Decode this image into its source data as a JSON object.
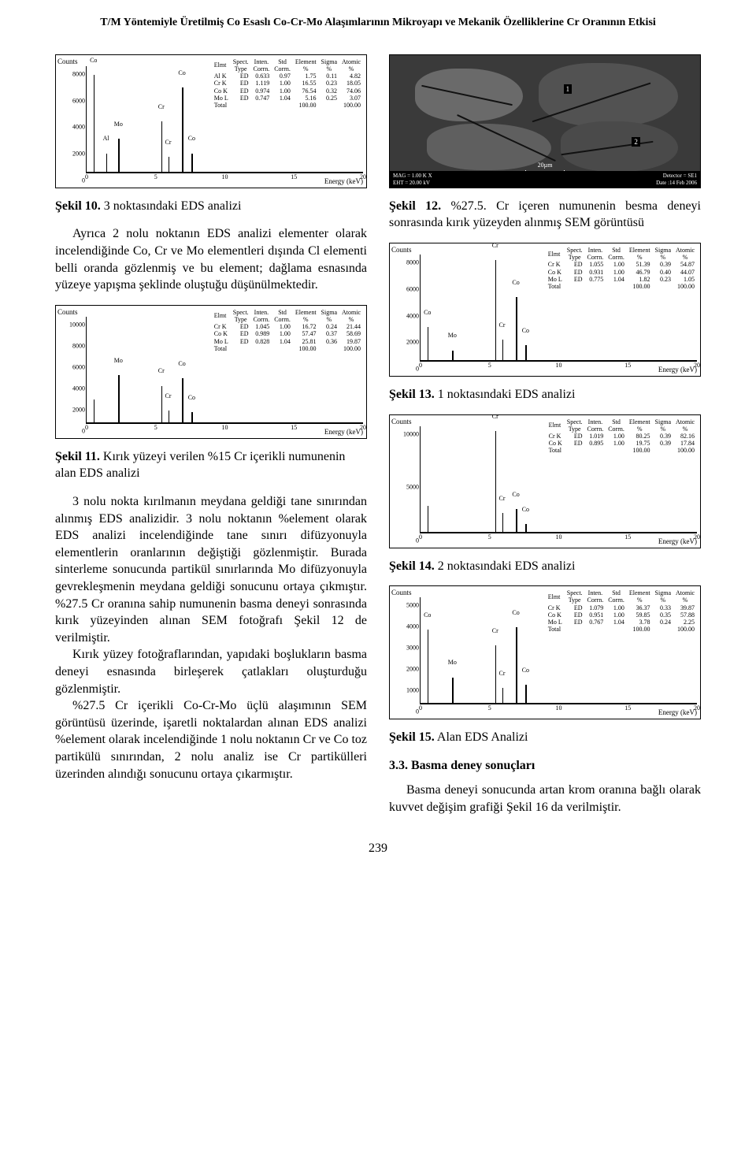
{
  "header": {
    "title": "T/M Yöntemiyle Üretilmiş Co Esaslı Co-Cr-Mo Alaşımlarının Mikroyapı ve Mekanik Özelliklerine Cr Oranının Etkisi"
  },
  "footer": {
    "page": "239"
  },
  "charts": {
    "common": {
      "axis_y_label": "Counts",
      "axis_x_label": "Energy (keV)",
      "xlim": [
        0,
        20
      ],
      "xticks": [
        0,
        5,
        10,
        15,
        20
      ],
      "line_color": "#000000",
      "bg_color": "#ffffff",
      "font_size_pt": 8
    },
    "sekil10": {
      "ylim": [
        0,
        8000
      ],
      "yticks": [
        0,
        2000,
        4000,
        6000,
        8000
      ],
      "peaks": [
        {
          "x": 0.5,
          "h": 0.92,
          "label": "Co"
        },
        {
          "x": 1.4,
          "h": 0.18,
          "label": "Al"
        },
        {
          "x": 2.3,
          "h": 0.32,
          "label": "Mo"
        },
        {
          "x": 5.4,
          "h": 0.48,
          "label": "Cr"
        },
        {
          "x": 5.9,
          "h": 0.15,
          "label": "Cr"
        },
        {
          "x": 6.9,
          "h": 0.8,
          "label": "Co"
        },
        {
          "x": 7.6,
          "h": 0.18,
          "label": "Co"
        }
      ],
      "table": {
        "head": [
          "Elmt",
          "Spect.\nType",
          "Inten.\nCorrn.",
          "Std\nCorrn.",
          "Element\n%",
          "Sigma\n%",
          "Atomic\n%"
        ],
        "rows": [
          [
            "Al K",
            "ED",
            "0.633",
            "0.97",
            "1.75",
            "0.11",
            "4.82"
          ],
          [
            "Cr K",
            "ED",
            "1.119",
            "1.00",
            "16.55",
            "0.23",
            "18.05"
          ],
          [
            "Co K",
            "ED",
            "0.974",
            "1.00",
            "76.54",
            "0.32",
            "74.06"
          ],
          [
            "Mo L",
            "ED",
            "0.747",
            "1.04",
            "5.16",
            "0.25",
            "3.07"
          ],
          [
            "Total",
            "",
            "",
            "",
            "100.00",
            "",
            "100.00"
          ]
        ]
      }
    },
    "sekil11": {
      "ylim": [
        0,
        10000
      ],
      "yticks": [
        0,
        2000,
        4000,
        6000,
        8000,
        10000
      ],
      "peaks": [
        {
          "x": 0.5,
          "h": 0.22,
          "label": ""
        },
        {
          "x": 2.3,
          "h": 0.45,
          "label": "Mo"
        },
        {
          "x": 5.4,
          "h": 0.35,
          "label": "Cr"
        },
        {
          "x": 5.9,
          "h": 0.12,
          "label": "Cr"
        },
        {
          "x": 6.9,
          "h": 0.42,
          "label": "Co"
        },
        {
          "x": 7.6,
          "h": 0.1,
          "label": "Co"
        }
      ],
      "table": {
        "head": [
          "Elmt",
          "Spect.\nType",
          "Inten.\nCorrn.",
          "Std\nCorrn.",
          "Element\n%",
          "Sigma\n%",
          "Atomic\n%"
        ],
        "rows": [
          [
            "Cr K",
            "ED",
            "1.045",
            "1.00",
            "16.72",
            "0.24",
            "21.44"
          ],
          [
            "Co K",
            "ED",
            "0.989",
            "1.00",
            "57.47",
            "0.37",
            "58.69"
          ],
          [
            "Mo L",
            "ED",
            "0.828",
            "1.04",
            "25.81",
            "0.36",
            "19.87"
          ],
          [
            "Total",
            "",
            "",
            "",
            "100.00",
            "",
            "100.00"
          ]
        ]
      }
    },
    "sekil13": {
      "ylim": [
        0,
        8000
      ],
      "yticks": [
        0,
        2000,
        4000,
        6000,
        8000
      ],
      "peaks": [
        {
          "x": 0.5,
          "h": 0.32,
          "label": "Co"
        },
        {
          "x": 2.3,
          "h": 0.1,
          "label": "Mo"
        },
        {
          "x": 5.4,
          "h": 0.95,
          "label": "Cr"
        },
        {
          "x": 5.9,
          "h": 0.2,
          "label": "Cr"
        },
        {
          "x": 6.9,
          "h": 0.6,
          "label": "Co"
        },
        {
          "x": 7.6,
          "h": 0.15,
          "label": "Co"
        }
      ],
      "table": {
        "head": [
          "Elmt",
          "Spect.\nType",
          "Inten.\nCorrn.",
          "Std\nCorrn.",
          "Element\n%",
          "Sigma\n%",
          "Atomic\n%"
        ],
        "rows": [
          [
            "Cr K",
            "ED",
            "1.055",
            "1.00",
            "51.39",
            "0.39",
            "54.87"
          ],
          [
            "Co K",
            "ED",
            "0.931",
            "1.00",
            "46.79",
            "0.40",
            "44.07"
          ],
          [
            "Mo L",
            "ED",
            "0.775",
            "1.04",
            "1.82",
            "0.23",
            "1.05"
          ],
          [
            "Total",
            "",
            "",
            "",
            "100.00",
            "",
            "100.00"
          ]
        ]
      }
    },
    "sekil14": {
      "ylim": [
        0,
        10000
      ],
      "yticks": [
        0,
        5000,
        10000
      ],
      "peaks": [
        {
          "x": 0.5,
          "h": 0.25,
          "label": ""
        },
        {
          "x": 5.4,
          "h": 0.95,
          "label": "Cr"
        },
        {
          "x": 5.9,
          "h": 0.18,
          "label": "Cr"
        },
        {
          "x": 6.9,
          "h": 0.22,
          "label": "Co"
        },
        {
          "x": 7.6,
          "h": 0.08,
          "label": "Co"
        }
      ],
      "table": {
        "head": [
          "Elmt",
          "Spect.\nType",
          "Inten.\nCorrn.",
          "Std\nCorrn.",
          "Element\n%",
          "Sigma\n%",
          "Atomic\n%"
        ],
        "rows": [
          [
            "Cr K",
            "ED",
            "1.019",
            "1.00",
            "80.25",
            "0.39",
            "82.16"
          ],
          [
            "Co K",
            "ED",
            "0.895",
            "1.00",
            "19.75",
            "0.39",
            "17.84"
          ],
          [
            "Total",
            "",
            "",
            "",
            "100.00",
            "",
            "100.00"
          ]
        ]
      }
    },
    "sekil15": {
      "ylim": [
        0,
        5000
      ],
      "yticks": [
        0,
        1000,
        2000,
        3000,
        4000,
        5000
      ],
      "peaks": [
        {
          "x": 0.5,
          "h": 0.7,
          "label": "Co"
        },
        {
          "x": 2.3,
          "h": 0.25,
          "label": "Mo"
        },
        {
          "x": 5.4,
          "h": 0.55,
          "label": "Cr"
        },
        {
          "x": 5.9,
          "h": 0.15,
          "label": "Cr"
        },
        {
          "x": 6.9,
          "h": 0.72,
          "label": "Co"
        },
        {
          "x": 7.6,
          "h": 0.18,
          "label": "Co"
        }
      ],
      "table": {
        "head": [
          "Elmt",
          "Spect.\nType",
          "Inten.\nCorrn.",
          "Std\nCorrn.",
          "Element\n%",
          "Sigma\n%",
          "Atomic\n%"
        ],
        "rows": [
          [
            "Cr K",
            "ED",
            "1.079",
            "1.00",
            "36.37",
            "0.33",
            "39.87"
          ],
          [
            "Co K",
            "ED",
            "0.951",
            "1.00",
            "59.85",
            "0.35",
            "57.88"
          ],
          [
            "Mo L",
            "ED",
            "0.767",
            "1.04",
            "3.78",
            "0.24",
            "2.25"
          ],
          [
            "Total",
            "",
            "",
            "",
            "100.00",
            "",
            "100.00"
          ]
        ]
      }
    }
  },
  "sem": {
    "markers": [
      "1",
      "2"
    ],
    "scalebar": "20µm",
    "info_left_1": "MAG = 1.00 K X",
    "info_left_2": "EHT = 20.00 kV",
    "info_right_1": "Detector = SE1",
    "info_right_2": "Date :14 Feb 2006"
  },
  "captions": {
    "s10_label": "Şekil 10.",
    "s10_text": " 3 noktasındaki EDS analizi",
    "s11_label": "Şekil 11.",
    "s11_text": " Kırık yüzeyi verilen %15 Cr içerikli numunenin alan EDS analizi",
    "s12_label": "Şekil 12.",
    "s12_text": " %27.5. Cr içeren numunenin besma deneyi sonrasında kırık yüzeyden alınmış SEM görüntüsü",
    "s13_label": "Şekil 13.",
    "s13_text": " 1 noktasındaki EDS analizi",
    "s14_label": "Şekil 14.",
    "s14_text": " 2 noktasındaki EDS analizi",
    "s15_label": "Şekil 15.",
    "s15_text": " Alan EDS Analizi"
  },
  "paragraphs": {
    "l1": "Ayrıca 2 nolu noktanın EDS analizi elementer olarak incelendiğinde Co, Cr ve Mo elementleri dışında Cl elementi belli oranda gözlenmiş ve bu element; dağlama esnasında yüzeye yapışma şeklinde oluştuğu düşünülmektedir.",
    "l2": "3 nolu nokta kırılmanın meydana geldiği tane sınırından alınmış EDS analizidir. 3 nolu noktanın %element olarak EDS analizi incelendiğinde tane sınırı difüzyonuyla elementlerin oranlarının değiştiği gözlenmiştir. Burada sinterleme sonucunda partikül sınırlarında Mo difüzyonuyla gevrekleşmenin meydana geldiği sonucunu ortaya çıkmıştır. %27.5 Cr oranına sahip numunenin basma deneyi sonrasında kırık yüzeyinden alınan SEM fotoğrafı Şekil 12 de verilmiştir.",
    "l3": "Kırık yüzey fotoğraflarından, yapıdaki boşlukların basma deneyi esnasında birleşerek çatlakları oluşturduğu gözlenmiştir.",
    "l4": "%27.5 Cr içerikli Co-Cr-Mo üçlü alaşımının SEM görüntüsü üzerinde, işaretli noktalardan alınan EDS analizi %element olarak incelendiğinde 1 nolu noktanın Cr ve Co toz partikülü sınırından, 2 nolu analiz ise Cr partikülleri üzerinden alındığı sonucunu ortaya çıkarmıştır.",
    "r1": "Basma deneyi sonucunda artan krom oranına bağlı olarak kuvvet değişim grafiği Şekil 16 da verilmiştir."
  },
  "headings": {
    "s33": "3.3. Basma deney sonuçları"
  }
}
